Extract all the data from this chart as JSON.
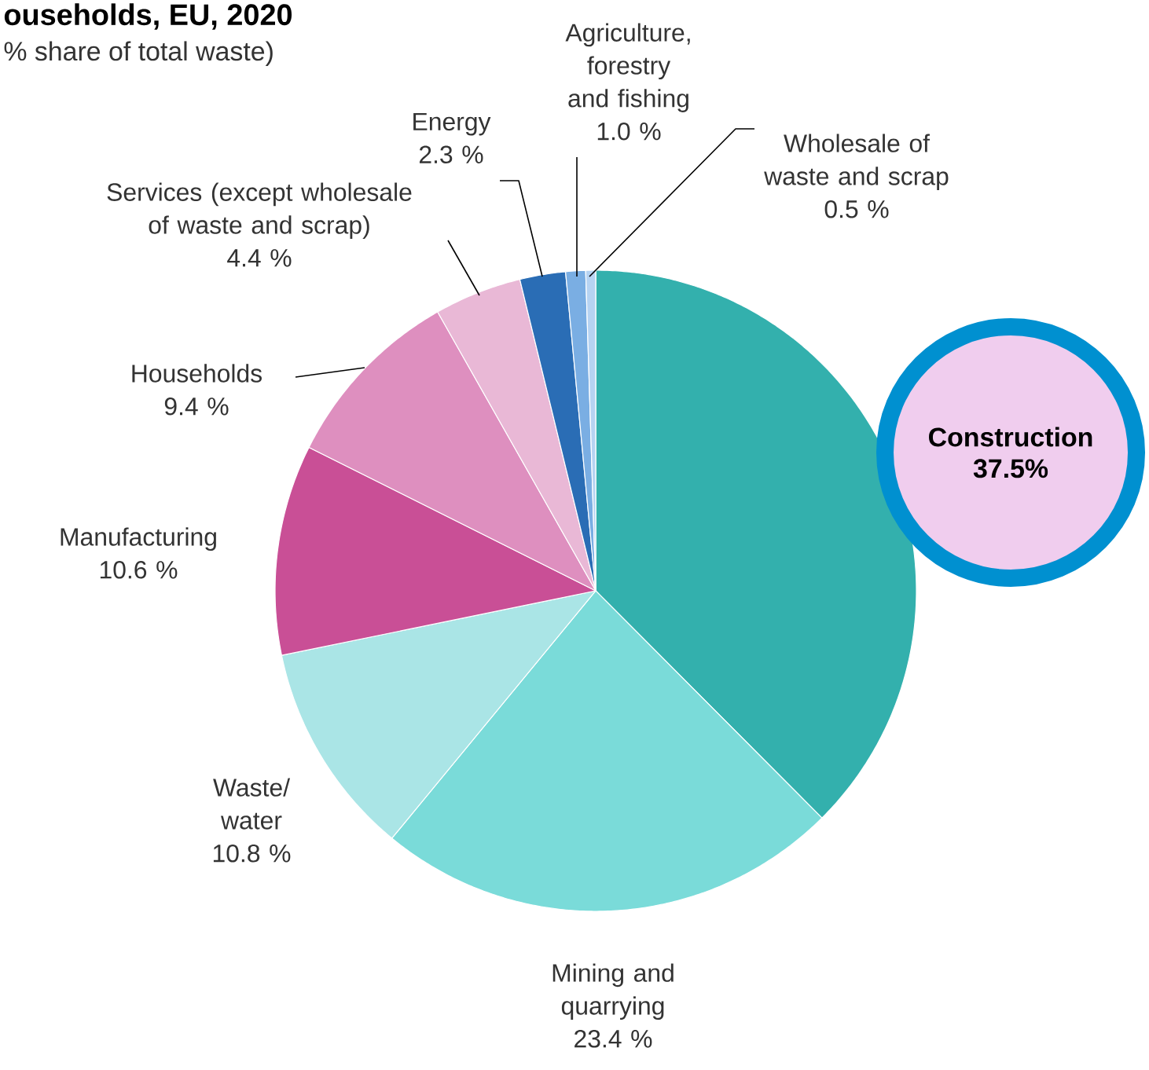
{
  "chart_data": {
    "type": "pie",
    "title": "ouseholds, EU, 2020",
    "subtitle": "% share of total waste)",
    "categories": [
      "Construction",
      "Mining and quarrying",
      "Waste/ water",
      "Manufacturing",
      "Households",
      "Services (except wholesale of waste and scrap)",
      "Energy",
      "Agriculture, forestry and fishing",
      "Wholesale of waste and scrap"
    ],
    "values": [
      37.5,
      23.4,
      10.8,
      10.6,
      9.4,
      4.4,
      2.3,
      1.0,
      0.5
    ],
    "value_labels": [
      "37.5%",
      "23.4 %",
      "10.8 %",
      "10.6 %",
      "9.4 %",
      "4.4 %",
      "2.3 %",
      "1.0 %",
      "0.5 %"
    ],
    "colors": [
      "#33b0ad",
      "#7adbd9",
      "#aae5e6",
      "#c94f96",
      "#de8fbf",
      "#e9b8d6",
      "#2a6db5",
      "#7aaee3",
      "#b6d3f2"
    ]
  }
}
